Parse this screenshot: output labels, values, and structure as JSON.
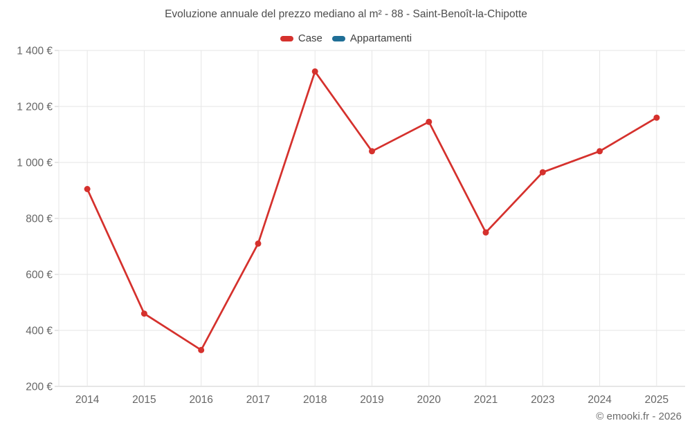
{
  "title": "Evoluzione annuale del prezzo mediano al m² - 88 - Saint-Benoît-la-Chipotte",
  "legend": {
    "items": [
      {
        "label": "Case",
        "color": "#d5312d"
      },
      {
        "label": "Appartamenti",
        "color": "#1f6e96"
      }
    ]
  },
  "copyright": "© emooki.fr - 2026",
  "colors": {
    "case_series": "#d5312d",
    "appartamenti_series": "#1f6e96",
    "gridline": "#e6e6e6",
    "axis_line": "#cccccc",
    "tick_text": "#666666",
    "title_text": "#4d4d4d",
    "background": "#ffffff"
  },
  "chart_data": {
    "type": "line",
    "title": "Evoluzione annuale del prezzo mediano al m² - 88 - Saint-Benoît-la-Chipotte",
    "xlabel": "",
    "ylabel": "",
    "categories": [
      "2014",
      "2015",
      "2016",
      "2017",
      "2018",
      "2019",
      "2020",
      "2021",
      "2023",
      "2024",
      "2025"
    ],
    "series": [
      {
        "name": "Case",
        "color": "#d5312d",
        "values": [
          905,
          460,
          330,
          710,
          1325,
          1040,
          1145,
          750,
          965,
          1040,
          1160
        ]
      },
      {
        "name": "Appartamenti",
        "color": "#1f6e96",
        "values": []
      }
    ],
    "ylim": [
      200,
      1400
    ],
    "ytick_step": 200,
    "ytick_labels": [
      "200 €",
      "400 €",
      "600 €",
      "800 €",
      "1 000 €",
      "1 200 €",
      "1 400 €"
    ],
    "grid": true,
    "legend_position": "top-center"
  }
}
